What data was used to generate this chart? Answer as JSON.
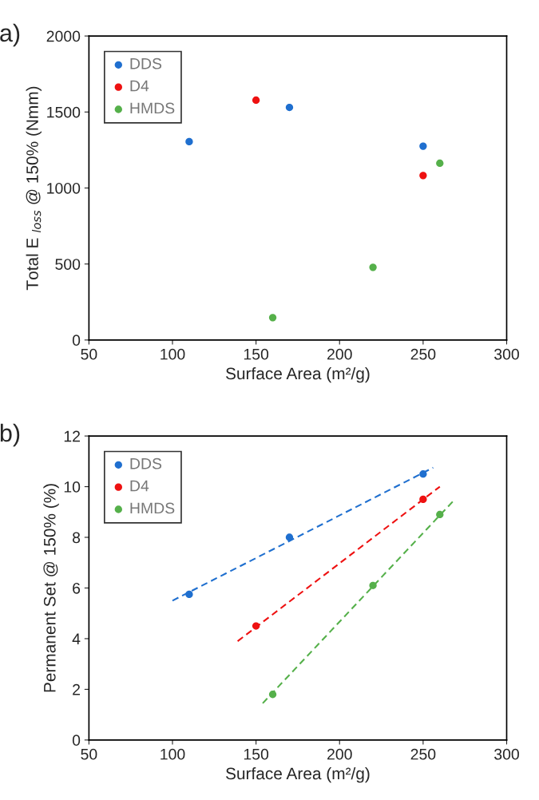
{
  "chart_data": [
    {
      "type": "scatter",
      "title": "a)",
      "xlabel": "Surface Area (m²/g)",
      "ylabel": "Total E $_{loss}$ @ 150% (Nmm)",
      "xlim": [
        50,
        300
      ],
      "xticks": [
        50,
        100,
        150,
        200,
        250,
        300
      ],
      "ylim": [
        0,
        2000
      ],
      "yticks": [
        0,
        500,
        1000,
        1500,
        2000
      ],
      "grid": false,
      "legend": "top left",
      "marker": "circle",
      "series": [
        {
          "name": "DDS",
          "color": "#1f6fcf",
          "x": [
            110,
            170,
            250
          ],
          "values": [
            1305,
            1530,
            1275
          ]
        },
        {
          "name": "D4",
          "color": "#ee1111",
          "x": [
            150,
            250
          ],
          "values": [
            1578,
            1082
          ]
        },
        {
          "name": "HMDS",
          "color": "#55b04a",
          "x": [
            160,
            220,
            260
          ],
          "values": [
            147,
            478,
            1163
          ]
        }
      ]
    },
    {
      "type": "scatter",
      "title": "b)",
      "xlabel": "Surface Area (m²/g)",
      "ylabel": "Permanent Set @ 150% (%)",
      "xlim": [
        50,
        300
      ],
      "xticks": [
        50,
        100,
        150,
        200,
        250,
        300
      ],
      "ylim": [
        0,
        12
      ],
      "yticks": [
        0,
        2,
        4,
        6,
        8,
        10,
        12
      ],
      "grid": false,
      "legend": "top left",
      "marker": "circle",
      "series": [
        {
          "name": "DDS",
          "color": "#1f6fcf",
          "x": [
            110,
            170,
            250
          ],
          "values": [
            5.75,
            8.0,
            10.5
          ]
        },
        {
          "name": "D4",
          "color": "#ee1111",
          "x": [
            150,
            250
          ],
          "values": [
            4.5,
            9.5
          ]
        },
        {
          "name": "HMDS",
          "color": "#55b04a",
          "x": [
            160,
            220,
            260
          ],
          "values": [
            1.8,
            6.1,
            8.9
          ]
        },
        {
          "type": "line",
          "line_style": "dashed",
          "marker": "none",
          "color": "#1f6fcf",
          "x": [
            100,
            256
          ],
          "values": [
            5.5,
            10.75
          ]
        },
        {
          "type": "line",
          "line_style": "dashed",
          "marker": "none",
          "color": "#ee1111",
          "x": [
            139,
            260
          ],
          "values": [
            3.9,
            10.0
          ]
        },
        {
          "type": "line",
          "line_style": "dashed",
          "marker": "none",
          "color": "#55b04a",
          "x": [
            154,
            269
          ],
          "values": [
            1.45,
            9.5
          ]
        }
      ]
    }
  ]
}
